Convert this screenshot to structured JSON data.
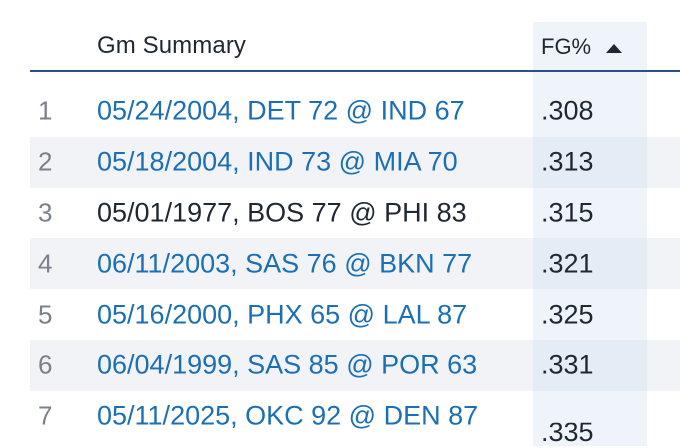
{
  "header": {
    "game_col": "Gm Summary",
    "fg_col": "FG%",
    "sort_icon": "sort-ascending-triangle-icon"
  },
  "colors": {
    "link": "#1a6fb5",
    "text": "#1f2733",
    "rank": "#7b8089",
    "header_rule": "#2b4f8a",
    "row_stripe": "#f1f3f6",
    "sorted_column": "#eef4fa"
  },
  "rows": [
    {
      "rank": "1",
      "game": "05/24/2004, DET 72 @ IND 67",
      "fg": ".308",
      "link": true
    },
    {
      "rank": "2",
      "game": "05/18/2004, IND 73 @ MIA 70",
      "fg": ".313",
      "link": true
    },
    {
      "rank": "3",
      "game": "05/01/1977, BOS 77 @ PHI 83",
      "fg": ".315",
      "link": false
    },
    {
      "rank": "4",
      "game": "06/11/2003, SAS 76 @ BKN 77",
      "fg": ".321",
      "link": true
    },
    {
      "rank": "5",
      "game": "05/16/2000, PHX 65 @ LAL 87",
      "fg": ".325",
      "link": true
    },
    {
      "rank": "6",
      "game": "06/04/1999, SAS 85 @ POR 63",
      "fg": ".331",
      "link": true
    },
    {
      "rank": "7",
      "game": "05/11/2025, OKC 92 @ DEN 87",
      "fg": ".335",
      "link": true
    }
  ]
}
